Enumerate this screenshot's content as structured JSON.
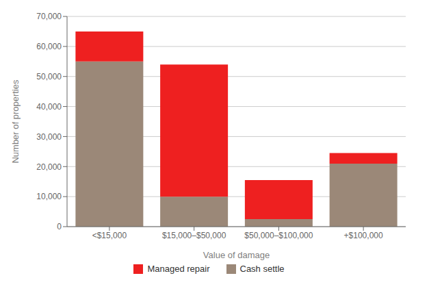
{
  "chart_data": {
    "type": "bar",
    "stacked": true,
    "categories": [
      "<$15,000",
      "$15,000–$50,000",
      "$50,000–$100,000",
      "+$100,000"
    ],
    "series": [
      {
        "name": "Cash settle",
        "color": "#9b8878",
        "values": [
          55000,
          10000,
          2500,
          21000
        ]
      },
      {
        "name": "Managed repair",
        "color": "#ee2020",
        "values": [
          10000,
          44000,
          13000,
          3500
        ]
      }
    ],
    "xlabel": "Value of damage",
    "ylabel": "Number of properties",
    "ylim": [
      0,
      70000
    ],
    "yticks": [
      0,
      {
        "value": 10000,
        "label": "10,000"
      },
      {
        "value": 20000,
        "label": "20,000"
      },
      {
        "value": 30000,
        "label": "30,000"
      },
      {
        "value": 40000,
        "label": "40,000"
      },
      {
        "value": 50000,
        "label": "50,000"
      },
      {
        "value": 60000,
        "label": "60,000"
      },
      {
        "value": 70000,
        "label": "70,000"
      }
    ],
    "grid": true,
    "legend": "bottom"
  }
}
